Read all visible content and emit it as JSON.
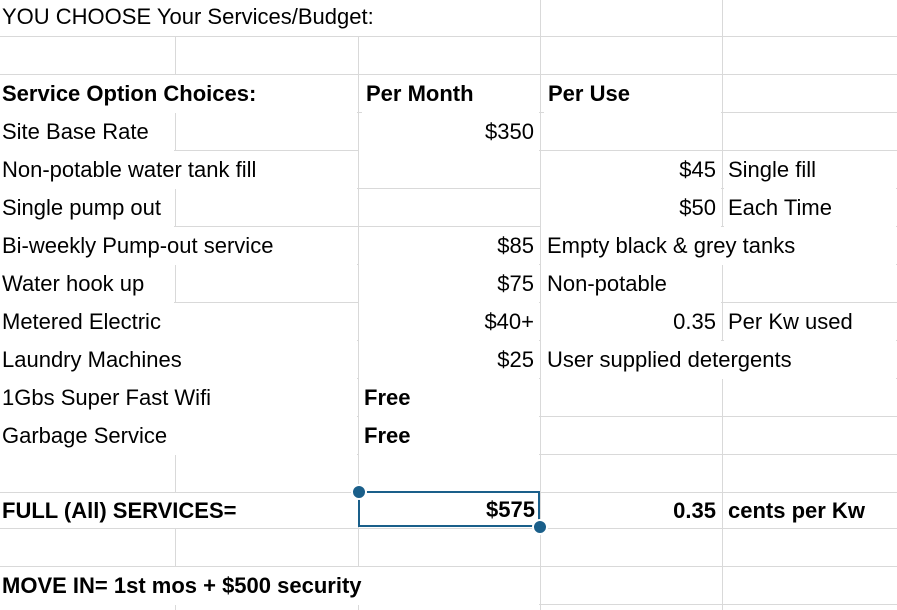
{
  "title": "YOU CHOOSE Your Services/Budget:",
  "headers": {
    "service": "Service Option Choices:",
    "per_month": "Per Month",
    "per_use": "Per Use"
  },
  "rows": [
    {
      "service": "Site Base Rate",
      "per_month": "$350",
      "per_use": "",
      "note": ""
    },
    {
      "service": "Non-potable water tank fill",
      "per_month": "",
      "per_use": "$45",
      "note": "Single fill"
    },
    {
      "service": "Single pump out",
      "per_month": "",
      "per_use": "$50",
      "note": "Each Time"
    },
    {
      "service": "Bi-weekly Pump-out service",
      "per_month": "$85",
      "note": "Empty black & grey tanks"
    },
    {
      "service": "Water hook up",
      "per_month": "$75",
      "note": "Non-potable"
    },
    {
      "service": "Metered Electric",
      "per_month": "$40+",
      "per_use": "0.35",
      "note": "Per Kw used"
    },
    {
      "service": "Laundry Machines",
      "per_month": "$25",
      "note": "User supplied detergents"
    },
    {
      "service": "1Gbs Super Fast Wifi",
      "per_month_text": "Free"
    },
    {
      "service": "Garbage Service",
      "per_month_text": "Free"
    }
  ],
  "full_services": {
    "label": "FULL (All) SERVICES=",
    "total": "$575",
    "rate": "0.35",
    "rate_unit": "cents per Kw"
  },
  "move_in": "MOVE IN= 1st mos + $500 security"
}
